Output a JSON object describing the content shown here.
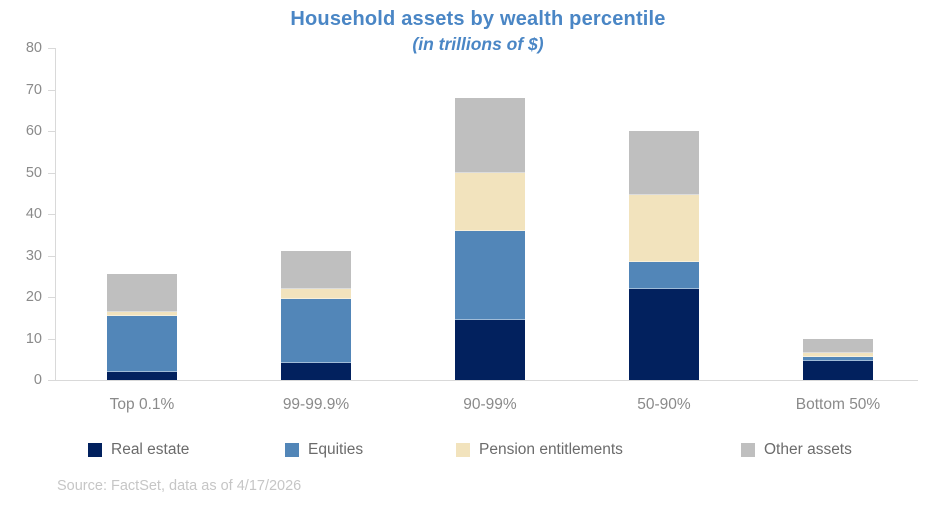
{
  "title": {
    "color": "#4a86c5"
  },
  "source": {
    "text": "Source: FactSet, data as of 4/17/2026"
  },
  "chart_data": {
    "type": "bar",
    "stacked": true,
    "title": "Household assets by wealth percentile",
    "subtitle": "(in trillions of $)",
    "categories": [
      "Top 0.1%",
      "99-99.9%",
      "90-99%",
      "50-90%",
      "Bottom 50%"
    ],
    "series": [
      {
        "name": "Real estate",
        "color": "#02215e",
        "values": [
          2,
          4,
          14.5,
          22,
          4.5
        ]
      },
      {
        "name": "Equities",
        "color": "#5286b8",
        "values": [
          13.5,
          15.5,
          21.5,
          6.5,
          1
        ]
      },
      {
        "name": "Pension entitlements",
        "color": "#f2e3bd",
        "values": [
          1,
          2.5,
          14,
          16,
          1
        ]
      },
      {
        "name": "Other assets",
        "color": "#bfbfbf",
        "values": [
          9,
          9,
          18,
          15.5,
          3.5
        ]
      }
    ],
    "totals": [
      25.5,
      31,
      68,
      60,
      10
    ],
    "xlabel": "",
    "ylabel": "",
    "ylim": [
      0,
      80
    ],
    "ytick_interval": 10,
    "grid": false,
    "legend_position": "bottom",
    "axis_line_color": "#d9d9d9",
    "axis_label_color": "#8a8a8a",
    "legend_label_color": "#6b6b6b",
    "source_color": "#c6c6c6",
    "title_color": "#4a86c5"
  }
}
